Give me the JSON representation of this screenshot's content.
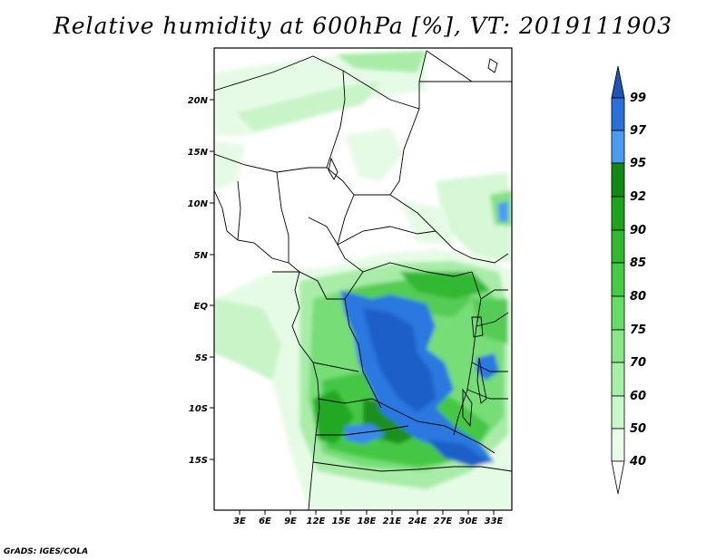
{
  "title": "Relative humidity at 600hPa [%], VT: 2019111903",
  "credit": "GrADS: IGES/COLA",
  "map": {
    "lat_labels": [
      "20N",
      "15N",
      "10N",
      "5N",
      "EQ",
      "5S",
      "10S",
      "15S"
    ],
    "lon_labels": [
      "3E",
      "6E",
      "9E",
      "12E",
      "15E",
      "18E",
      "21E",
      "24E",
      "27E",
      "30E",
      "33E"
    ],
    "region": "Central Africa"
  },
  "colorbar": {
    "levels": [
      "40",
      "50",
      "60",
      "70",
      "75",
      "80",
      "85",
      "90",
      "92",
      "95",
      "97",
      "99"
    ],
    "colors": [
      "#ffffff",
      "#e8fde8",
      "#c8f8c8",
      "#a8f0a8",
      "#88e888",
      "#66dd66",
      "#44cc44",
      "#33b833",
      "#1fa31f",
      "#108a10",
      "#4a9cf0",
      "#2a70d8",
      "#1e56b8"
    ]
  }
}
